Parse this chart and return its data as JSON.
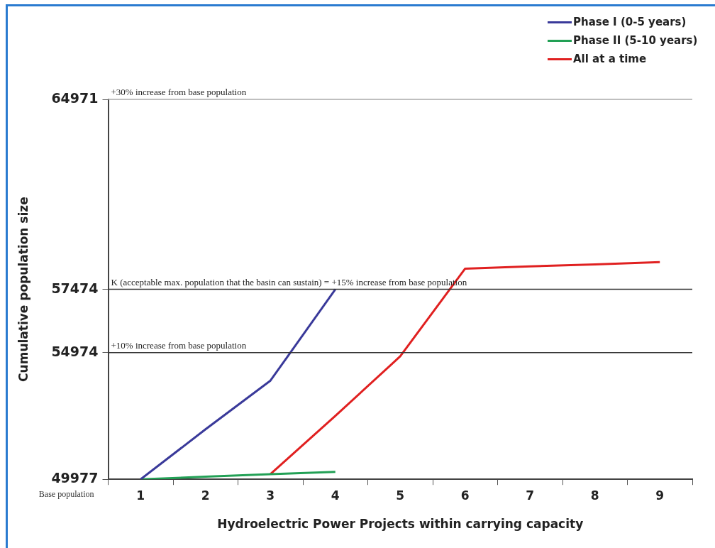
{
  "chart_data": {
    "type": "line",
    "xlabel": "Hydroelectric Power Projects within carrying capacity",
    "ylabel": "Cumulative population size",
    "categories": [
      "1",
      "2",
      "3",
      "4",
      "5",
      "6",
      "7",
      "8",
      "9"
    ],
    "series": [
      {
        "name": "Phase I (0-5 years)",
        "color": "#3a3a9a",
        "values": [
          49977,
          51950,
          53870,
          57474,
          null,
          null,
          null,
          null,
          null
        ]
      },
      {
        "name": "Phase II (5-10 years)",
        "color": "#22a055",
        "values": [
          49977,
          50080,
          50180,
          50270,
          null,
          null,
          null,
          null,
          null
        ]
      },
      {
        "name": "All at a time",
        "color": "#e02020",
        "values": [
          null,
          null,
          50180,
          52480,
          54830,
          58290,
          58380,
          58460,
          58550
        ]
      }
    ],
    "ylim": [
      49977,
      64971
    ],
    "yticks": [
      49977,
      54974,
      57474,
      64971
    ],
    "ref_lines": [
      {
        "axis": "y",
        "value": 64971,
        "label": "+30% increase from base population",
        "color": "#aaaaaa"
      },
      {
        "axis": "y",
        "value": 57474,
        "label": "K (acceptable max. population that the basin can sustain) = +15% increase from base population",
        "color": "#333333"
      },
      {
        "axis": "y",
        "value": 54974,
        "label": "+10% increase from base population",
        "color": "#333333"
      }
    ],
    "annotations": [
      "Base population"
    ],
    "grid": false,
    "legend": "top right",
    "marker": "none",
    "line_style": "solid"
  }
}
